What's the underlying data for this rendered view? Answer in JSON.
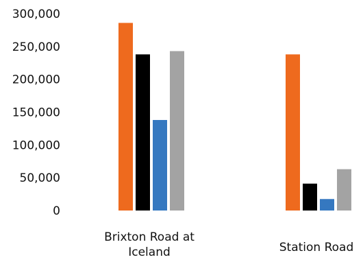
{
  "chart_data": {
    "type": "bar",
    "categories": [
      "Brixton Road at Iceland",
      "Station Road"
    ],
    "category_label_lines": [
      [
        "Brixton Road at",
        "Iceland"
      ],
      [
        "Station Road"
      ]
    ],
    "series": [
      {
        "values": [
          286000,
          238000
        ]
      },
      {
        "values": [
          238000,
          41000
        ]
      },
      {
        "values": [
          138000,
          17500
        ]
      },
      {
        "values": [
          243000,
          63000
        ]
      }
    ],
    "colors": [
      "#EE6A1E",
      "#000000",
      "#3578C0",
      "#A3A3A3"
    ],
    "ylim": [
      0,
      300000
    ],
    "y_ticks": [
      {
        "value": 0,
        "label": "0"
      },
      {
        "value": 50000,
        "label": "50,000"
      },
      {
        "value": 100000,
        "label": "100,000"
      },
      {
        "value": 150000,
        "label": "150,000"
      },
      {
        "value": 200000,
        "label": "200,000"
      },
      {
        "value": 250000,
        "label": "250,000"
      },
      {
        "value": 300000,
        "label": "300,000"
      }
    ],
    "title": "",
    "xlabel": "",
    "ylabel": "",
    "grid": false,
    "legend": "none"
  }
}
